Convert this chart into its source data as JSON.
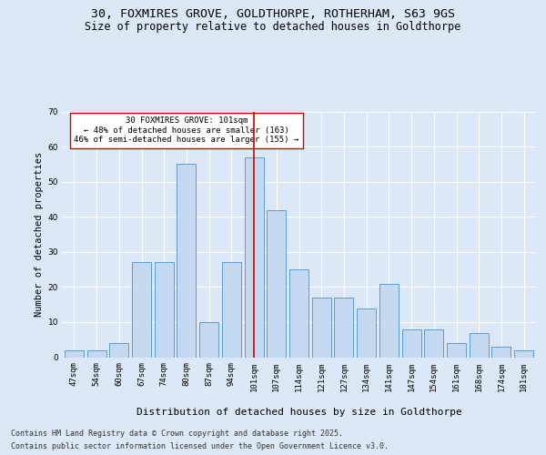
{
  "title_line1": "30, FOXMIRES GROVE, GOLDTHORPE, ROTHERHAM, S63 9GS",
  "title_line2": "Size of property relative to detached houses in Goldthorpe",
  "xlabel": "Distribution of detached houses by size in Goldthorpe",
  "ylabel": "Number of detached properties",
  "footer_line1": "Contains HM Land Registry data © Crown copyright and database right 2025.",
  "footer_line2": "Contains public sector information licensed under the Open Government Licence v3.0.",
  "categories": [
    "47sqm",
    "54sqm",
    "60sqm",
    "67sqm",
    "74sqm",
    "80sqm",
    "87sqm",
    "94sqm",
    "101sqm",
    "107sqm",
    "114sqm",
    "121sqm",
    "127sqm",
    "134sqm",
    "141sqm",
    "147sqm",
    "154sqm",
    "161sqm",
    "168sqm",
    "174sqm",
    "181sqm"
  ],
  "values": [
    2,
    2,
    4,
    27,
    27,
    55,
    10,
    27,
    57,
    42,
    25,
    17,
    17,
    14,
    21,
    8,
    8,
    4,
    7,
    3,
    2
  ],
  "bar_color": "#c5d9f1",
  "bar_edge_color": "#5b9bd5",
  "highlight_index": 8,
  "annotation_line1": "30 FOXMIRES GROVE: 101sqm",
  "annotation_line2": "← 48% of detached houses are smaller (163)",
  "annotation_line3": "46% of semi-detached houses are larger (155) →",
  "red_line_color": "#cc0000",
  "annotation_box_edge": "#cc0000",
  "background_color": "#dce8f8",
  "plot_bg_color": "#dce8f8",
  "ylim": [
    0,
    70
  ],
  "yticks": [
    0,
    10,
    20,
    30,
    40,
    50,
    60,
    70
  ],
  "grid_color": "#ffffff",
  "title_fontsize": 9.5,
  "subtitle_fontsize": 8.5,
  "axis_label_fontsize": 8,
  "tick_fontsize": 6.5,
  "footer_fontsize": 6,
  "ylabel_fontsize": 7.5
}
